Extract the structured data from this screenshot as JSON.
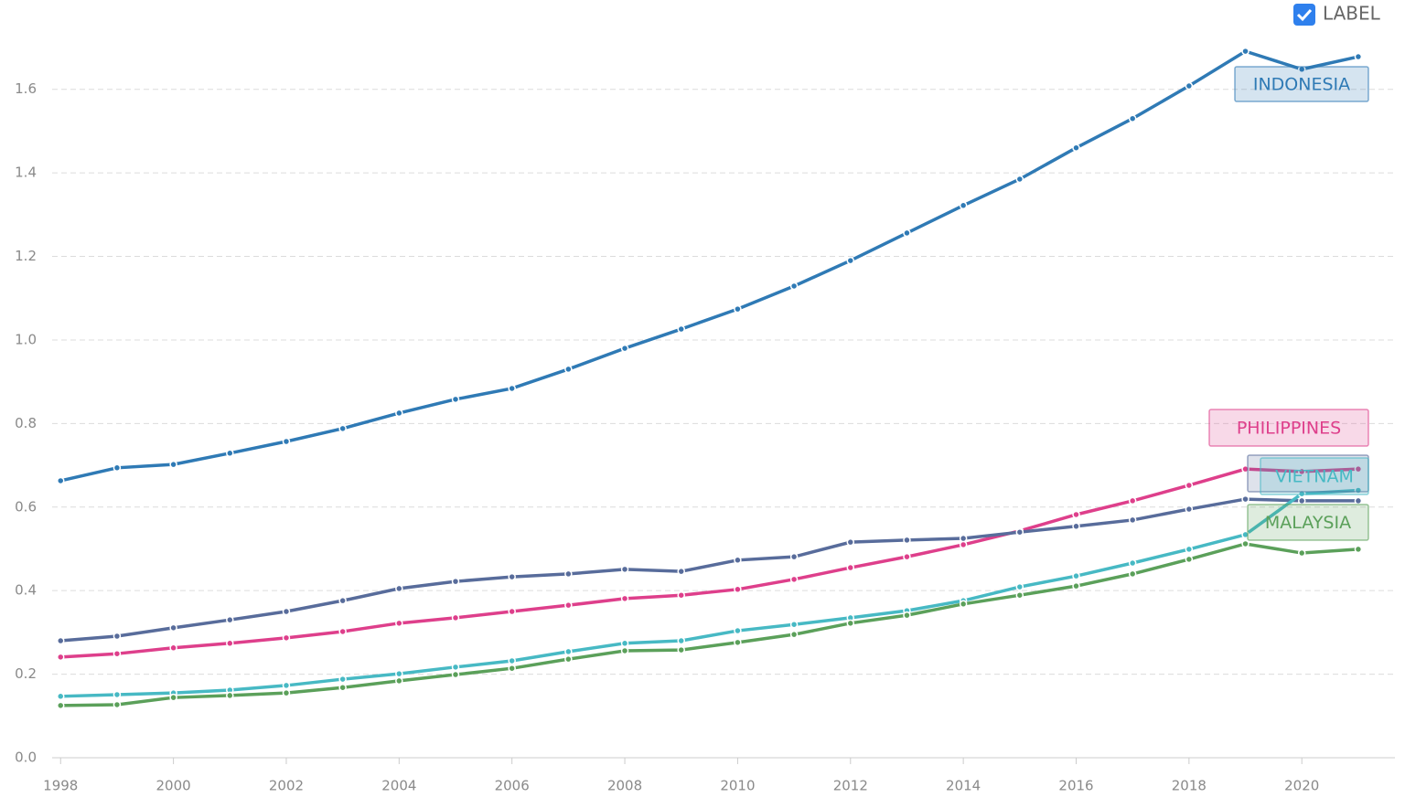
{
  "chart_data": {
    "type": "line",
    "toggle_label": "LABEL",
    "x": [
      1998,
      1999,
      2000,
      2001,
      2002,
      2003,
      2004,
      2005,
      2006,
      2007,
      2008,
      2009,
      2010,
      2011,
      2012,
      2013,
      2014,
      2015,
      2016,
      2017,
      2018,
      2019,
      2020,
      2021
    ],
    "xlim": [
      1997.85,
      2021.65
    ],
    "xticks": [
      1998,
      2000,
      2002,
      2004,
      2006,
      2008,
      2010,
      2012,
      2014,
      2016,
      2018,
      2020
    ],
    "ylim": [
      0,
      1.7
    ],
    "yticks": [
      {
        "value": 0,
        "label": "0.0"
      },
      0.2,
      0.4,
      0.6,
      0.8,
      {
        "value": 1,
        "label": "1.0"
      },
      1.2,
      1.4,
      1.6
    ],
    "grid": true,
    "series": [
      {
        "name": "INDONESIA",
        "color": "#2f7ab5",
        "values": [
          0.663,
          0.694,
          0.702,
          0.729,
          0.757,
          0.788,
          0.825,
          0.858,
          0.884,
          0.93,
          0.98,
          1.026,
          1.074,
          1.129,
          1.19,
          1.256,
          1.322,
          1.385,
          1.46,
          1.53,
          1.608,
          1.691,
          1.648,
          1.678
        ]
      },
      {
        "name": "PHILIPPINES",
        "color": "#de3f8b",
        "values": [
          0.241,
          0.249,
          0.263,
          0.274,
          0.287,
          0.302,
          0.322,
          0.335,
          0.35,
          0.365,
          0.381,
          0.389,
          0.403,
          0.427,
          0.455,
          0.481,
          0.51,
          0.543,
          0.582,
          0.615,
          0.652,
          0.691,
          0.685,
          0.691
        ]
      },
      {
        "name": null,
        "color": "#586c9b",
        "values": [
          0.28,
          0.291,
          0.311,
          0.33,
          0.35,
          0.376,
          0.405,
          0.422,
          0.433,
          0.44,
          0.451,
          0.446,
          0.473,
          0.481,
          0.516,
          0.521,
          0.525,
          0.54,
          0.554,
          0.569,
          0.595,
          0.619,
          0.615,
          0.615
        ]
      },
      {
        "name": "VIETNAM",
        "color": "#47b9c4",
        "values": [
          0.147,
          0.151,
          0.155,
          0.162,
          0.173,
          0.188,
          0.201,
          0.217,
          0.232,
          0.254,
          0.274,
          0.28,
          0.304,
          0.319,
          0.335,
          0.352,
          0.376,
          0.409,
          0.435,
          0.466,
          0.499,
          0.534,
          0.632,
          0.64
        ]
      },
      {
        "name": "MALAYSIA",
        "color": "#5ba05a",
        "values": [
          0.125,
          0.127,
          0.144,
          0.149,
          0.155,
          0.168,
          0.184,
          0.199,
          0.214,
          0.236,
          0.256,
          0.258,
          0.276,
          0.295,
          0.322,
          0.341,
          0.368,
          0.389,
          0.411,
          0.44,
          0.475,
          0.512,
          0.49,
          0.499
        ]
      }
    ]
  }
}
